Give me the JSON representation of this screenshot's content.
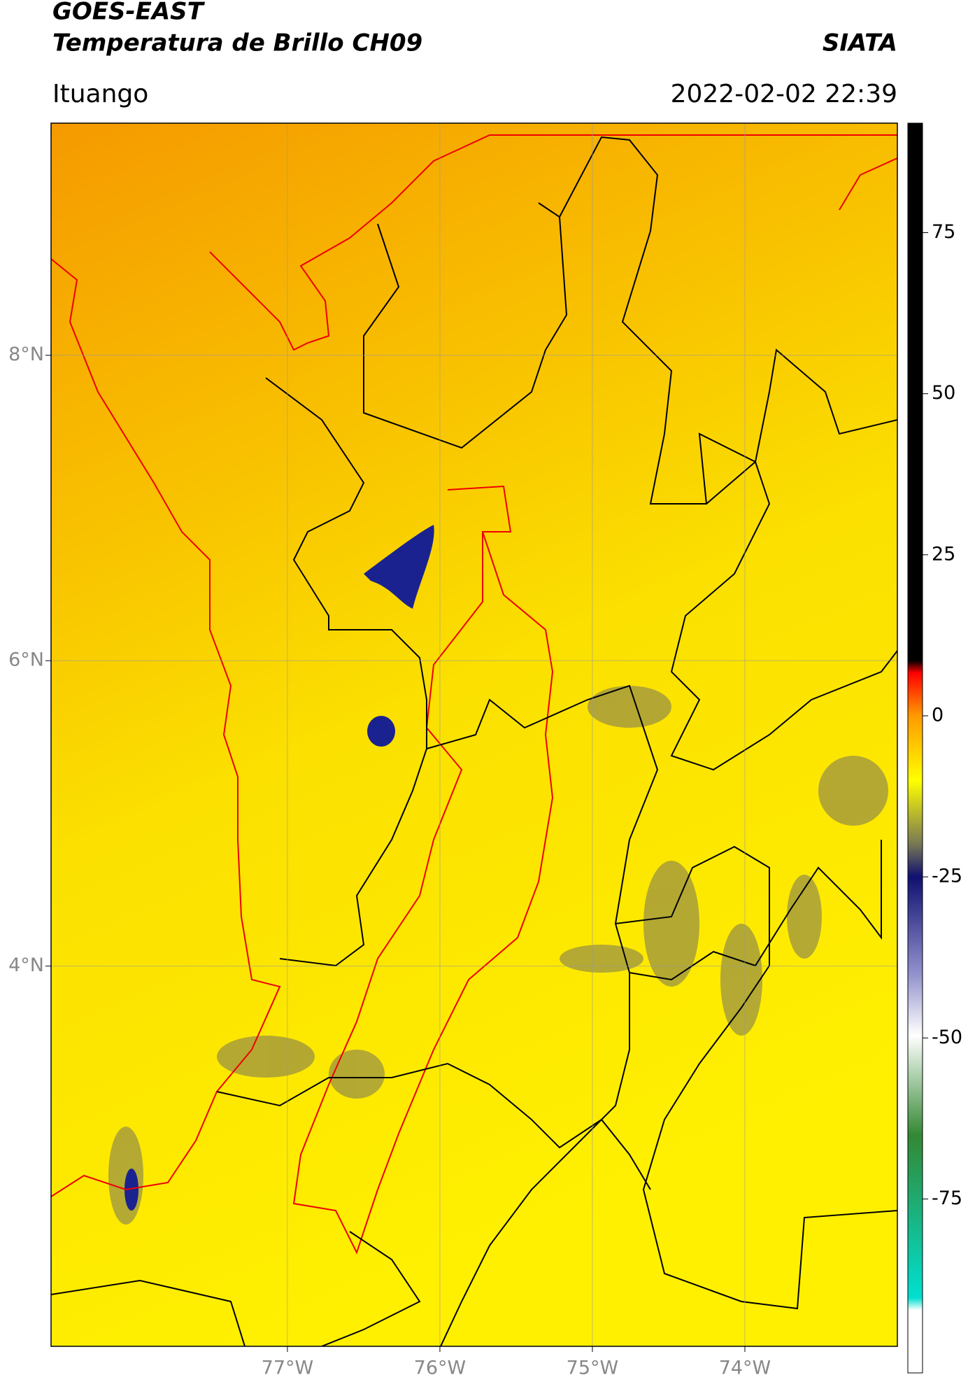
{
  "header": {
    "satellite": "GOES-EAST",
    "product": "Temperatura de Brillo CH09",
    "source": "SIATA",
    "location": "Ituango",
    "datetime": "2022-02-02 22:39"
  },
  "map": {
    "xlim": [
      -78.55,
      -73.0
    ],
    "ylim": [
      1.51,
      9.52
    ],
    "xticks": [
      {
        "value": -77,
        "label": "77°W"
      },
      {
        "value": -76,
        "label": "76°W"
      },
      {
        "value": -75,
        "label": "75°W"
      },
      {
        "value": -74,
        "label": "74°W"
      }
    ],
    "yticks": [
      {
        "value": 8,
        "label": "8°N"
      },
      {
        "value": 6,
        "label": "6°N"
      },
      {
        "value": 4,
        "label": "4°N"
      }
    ],
    "grid": true
  },
  "colorbar": {
    "clim": [
      -102,
      92
    ],
    "ticks": [
      75,
      50,
      25,
      0,
      -25,
      -50,
      -75
    ]
  }
}
